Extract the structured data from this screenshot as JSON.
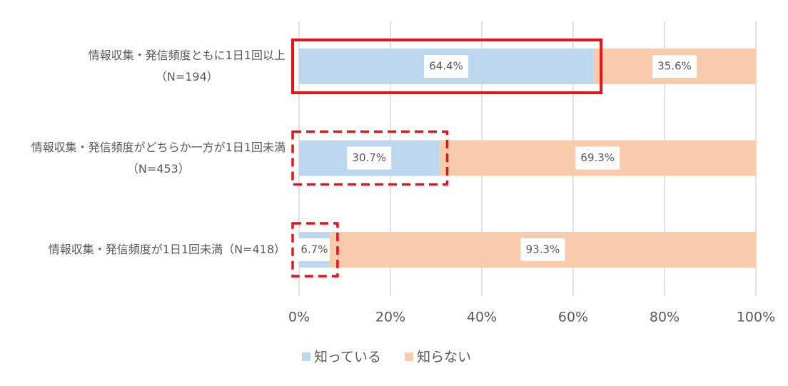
{
  "chart_data": {
    "type": "stacked-bar-horizontal",
    "categories": [
      "情報収集・発信頻度ともに1日1回以上\n（N=194）",
      "情報収集・発信頻度がどちらか一方が1日1回未満\n（N=453）",
      "情報収集・発信頻度が1日1回未満（N=418）"
    ],
    "series": [
      {
        "name": "知っている",
        "color": "#bdd7ee",
        "values": [
          64.4,
          30.7,
          6.7
        ],
        "value_labels": [
          "64.4%",
          "30.7%",
          "6.7%"
        ]
      },
      {
        "name": "知らない",
        "color": "#f8cbad",
        "values": [
          35.6,
          69.3,
          93.3
        ],
        "value_labels": [
          "35.6%",
          "69.3%",
          "93.3%"
        ]
      }
    ],
    "xlim": [
      0,
      100
    ],
    "xticks": [
      {
        "value": 0,
        "label": "0%"
      },
      {
        "value": 20,
        "label": "20%"
      },
      {
        "value": 40,
        "label": "40%"
      },
      {
        "value": 60,
        "label": "60%"
      },
      {
        "value": 80,
        "label": "80%"
      },
      {
        "value": 100,
        "label": "100%"
      }
    ],
    "grid": true,
    "legend": "bottom",
    "highlight_color": "#e8121b",
    "highlight_styles": [
      "solid",
      "dashed",
      "dashed"
    ]
  }
}
